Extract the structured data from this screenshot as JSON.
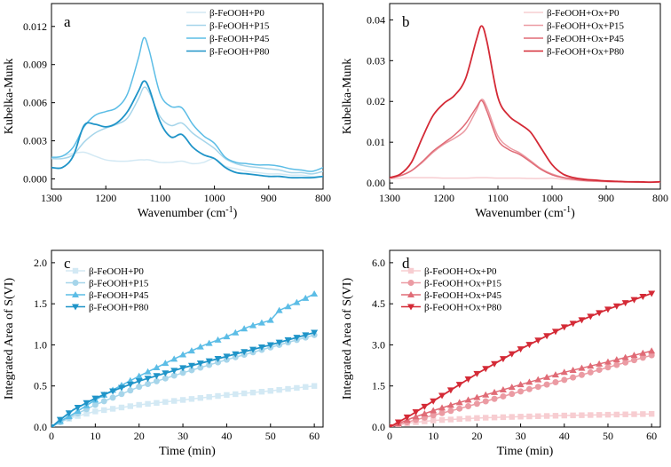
{
  "figure": {
    "panel_count": 4
  },
  "chart_data": [
    {
      "panel": "a",
      "type": "line",
      "xlabel_main": "Wavenumber (cm",
      "xlabel_sup": "-1",
      "xlabel_end": ")",
      "ylabel": "Kubelka-Munk",
      "xlim": [
        1300,
        800
      ],
      "ylim": [
        -0.0008,
        0.0138
      ],
      "xticks": [
        1300,
        1200,
        1100,
        1000,
        900,
        800
      ],
      "xtick_labels": [
        "1300",
        "1200",
        "1100",
        "1000",
        "900",
        "800"
      ],
      "yticks": [
        0,
        0.003,
        0.006,
        0.009,
        0.012
      ],
      "ytick_labels": [
        "0.000",
        "0.003",
        "0.006",
        "0.009",
        "0.012"
      ],
      "legend": [
        "β-FeOOH+P0",
        "β-FeOOH+P15",
        "β-FeOOH+P45",
        "β-FeOOH+P80"
      ],
      "series": [
        {
          "name": "β-FeOOH+P0",
          "color": "#d3e9f4",
          "x": [
            1300,
            1280,
            1260,
            1240,
            1220,
            1200,
            1180,
            1160,
            1140,
            1130,
            1120,
            1100,
            1080,
            1060,
            1040,
            1020,
            1000,
            980,
            960,
            940,
            920,
            900,
            880,
            860,
            840,
            820,
            800
          ],
          "y": [
            0.0016,
            0.0018,
            0.002,
            0.0021,
            0.0018,
            0.0015,
            0.0014,
            0.0014,
            0.0015,
            0.0015,
            0.0015,
            0.0013,
            0.0013,
            0.0014,
            0.0012,
            0.0013,
            0.0016,
            0.001,
            0.0008,
            0.0006,
            0.0005,
            0.0004,
            0.0004,
            0.0003,
            0.0003,
            0.0002,
            0.0002
          ]
        },
        {
          "name": "β-FeOOH+P15",
          "color": "#a6d5ea",
          "x": [
            1300,
            1280,
            1260,
            1240,
            1220,
            1200,
            1180,
            1160,
            1140,
            1130,
            1120,
            1100,
            1080,
            1060,
            1040,
            1020,
            1000,
            980,
            960,
            940,
            920,
            900,
            880,
            860,
            840,
            820,
            800
          ],
          "y": [
            0.0016,
            0.0016,
            0.0019,
            0.0029,
            0.0036,
            0.004,
            0.0043,
            0.0048,
            0.0063,
            0.0072,
            0.0068,
            0.0049,
            0.0042,
            0.0044,
            0.0036,
            0.003,
            0.0024,
            0.0016,
            0.0012,
            0.001,
            0.0009,
            0.0008,
            0.0007,
            0.0005,
            0.0005,
            0.0004,
            0.0006
          ]
        },
        {
          "name": "β-FeOOH+P45",
          "color": "#5cbde6",
          "x": [
            1300,
            1280,
            1260,
            1240,
            1220,
            1200,
            1180,
            1160,
            1140,
            1130,
            1120,
            1100,
            1080,
            1060,
            1040,
            1020,
            1000,
            980,
            960,
            940,
            920,
            900,
            880,
            860,
            840,
            820,
            800
          ],
          "y": [
            0.0017,
            0.0018,
            0.0025,
            0.0041,
            0.005,
            0.0053,
            0.0056,
            0.0067,
            0.0095,
            0.0111,
            0.0101,
            0.0067,
            0.0057,
            0.0056,
            0.0043,
            0.0034,
            0.0028,
            0.0017,
            0.0013,
            0.0012,
            0.0011,
            0.0011,
            0.001,
            0.0008,
            0.0007,
            0.0006,
            0.0009
          ]
        },
        {
          "name": "β-FeOOH+P80",
          "color": "#1f94c8",
          "x": [
            1300,
            1280,
            1260,
            1240,
            1220,
            1200,
            1180,
            1160,
            1140,
            1130,
            1120,
            1100,
            1080,
            1060,
            1040,
            1020,
            1000,
            980,
            960,
            940,
            920,
            900,
            880,
            860,
            840,
            820,
            800
          ],
          "y": [
            0.0009,
            0.0009,
            0.0018,
            0.0042,
            0.0043,
            0.0041,
            0.0044,
            0.0053,
            0.0069,
            0.0077,
            0.0071,
            0.0045,
            0.0033,
            0.0035,
            0.0025,
            0.0019,
            0.0016,
            0.0009,
            0.0005,
            0.0004,
            0.0003,
            0.0002,
            0.0002,
            0.0001,
            0.0001,
            0.0001,
            0.0002
          ]
        }
      ]
    },
    {
      "panel": "b",
      "type": "line",
      "xlabel_main": "Wavenumber (cm",
      "xlabel_sup": "-1",
      "xlabel_end": ")",
      "ylabel": "Kubelka-Munk",
      "xlim": [
        1300,
        800
      ],
      "ylim": [
        -0.0015,
        0.044
      ],
      "xticks": [
        1300,
        1200,
        1100,
        1000,
        900,
        800
      ],
      "xtick_labels": [
        "1300",
        "1200",
        "1100",
        "1000",
        "900",
        "800"
      ],
      "yticks": [
        0,
        0.01,
        0.02,
        0.03,
        0.04
      ],
      "ytick_labels": [
        "0.00",
        "0.01",
        "0.02",
        "0.03",
        "0.04"
      ],
      "legend": [
        "β-FeOOH+Ox+P0",
        "β-FeOOH+Ox+P15",
        "β-FeOOH+Ox+P45",
        "β-FeOOH+Ox+P80"
      ],
      "series": [
        {
          "name": "β-FeOOH+Ox+P0",
          "color": "#f7cdd1",
          "x": [
            1300,
            1280,
            1260,
            1240,
            1220,
            1200,
            1180,
            1160,
            1140,
            1130,
            1120,
            1100,
            1080,
            1060,
            1040,
            1020,
            1000,
            980,
            960,
            940,
            920,
            900,
            880,
            860,
            840,
            820,
            800
          ],
          "y": [
            0.001,
            0.0012,
            0.0013,
            0.0013,
            0.0013,
            0.0012,
            0.0012,
            0.0012,
            0.0013,
            0.0013,
            0.0013,
            0.0012,
            0.0012,
            0.0012,
            0.0011,
            0.0011,
            0.0012,
            0.0009,
            0.0007,
            0.0005,
            0.0004,
            0.0003,
            0.0003,
            0.0002,
            0.0002,
            0.0002,
            0.0002
          ]
        },
        {
          "name": "β-FeOOH+Ox+P15",
          "color": "#eb9ba3",
          "x": [
            1300,
            1280,
            1260,
            1240,
            1220,
            1200,
            1180,
            1160,
            1140,
            1130,
            1120,
            1100,
            1080,
            1060,
            1040,
            1020,
            1000,
            980,
            960,
            940,
            920,
            900,
            880,
            860,
            840,
            820,
            800
          ],
          "y": [
            0.0012,
            0.0018,
            0.003,
            0.005,
            0.0075,
            0.0095,
            0.011,
            0.013,
            0.0178,
            0.0205,
            0.0185,
            0.0115,
            0.0088,
            0.0074,
            0.0055,
            0.0035,
            0.0022,
            0.0014,
            0.001,
            0.0007,
            0.0005,
            0.0004,
            0.0003,
            0.0003,
            0.0002,
            0.0002,
            0.0003
          ]
        },
        {
          "name": "β-FeOOH+Ox+P45",
          "color": "#e06b76",
          "x": [
            1300,
            1280,
            1260,
            1240,
            1220,
            1200,
            1180,
            1160,
            1140,
            1130,
            1120,
            1100,
            1080,
            1060,
            1040,
            1020,
            1000,
            980,
            960,
            940,
            920,
            900,
            880,
            860,
            840,
            820,
            800
          ],
          "y": [
            0.0012,
            0.0018,
            0.003,
            0.0052,
            0.0078,
            0.0098,
            0.0118,
            0.0145,
            0.0185,
            0.0202,
            0.0175,
            0.0105,
            0.0082,
            0.007,
            0.0052,
            0.0033,
            0.002,
            0.0013,
            0.0009,
            0.0006,
            0.0005,
            0.0004,
            0.0003,
            0.0003,
            0.0002,
            0.0002,
            0.0003
          ]
        },
        {
          "name": "β-FeOOH+Ox+P80",
          "color": "#d42a36",
          "x": [
            1300,
            1280,
            1260,
            1240,
            1220,
            1200,
            1180,
            1160,
            1140,
            1130,
            1120,
            1100,
            1080,
            1060,
            1040,
            1020,
            1000,
            980,
            960,
            940,
            920,
            900,
            880,
            860,
            840,
            820,
            800
          ],
          "y": [
            0.0013,
            0.0022,
            0.005,
            0.011,
            0.0165,
            0.0195,
            0.0215,
            0.0255,
            0.035,
            0.0385,
            0.0345,
            0.021,
            0.0165,
            0.0145,
            0.0125,
            0.0085,
            0.0045,
            0.0022,
            0.0013,
            0.0009,
            0.0007,
            0.0005,
            0.0004,
            0.0003,
            0.0003,
            0.0002,
            0.0003
          ]
        }
      ]
    },
    {
      "panel": "c",
      "type": "line",
      "xlabel": "Time (min)",
      "ylabel": "Integrated Area of S(VI)",
      "xlim": [
        0,
        62
      ],
      "ylim": [
        0,
        2.15
      ],
      "xticks": [
        0,
        10,
        20,
        30,
        40,
        50,
        60
      ],
      "xtick_labels": [
        "0",
        "10",
        "20",
        "30",
        "40",
        "50",
        "60"
      ],
      "yticks": [
        0,
        0.5,
        1.0,
        1.5,
        2.0
      ],
      "ytick_labels": [
        "0.0",
        "0.5",
        "1.0",
        "1.5",
        "2.0"
      ],
      "legend": [
        "β-FeOOH+P0",
        "β-FeOOH+P15",
        "β-FeOOH+P45",
        "β-FeOOH+P80"
      ],
      "marker_spacing_min": 2,
      "series": [
        {
          "name": "β-FeOOH+P0",
          "color": "#d3e9f4",
          "marker": "square",
          "x": [
            0,
            2,
            5,
            10,
            15,
            20,
            30,
            40,
            50,
            60
          ],
          "y": [
            0,
            0.06,
            0.12,
            0.19,
            0.23,
            0.27,
            0.33,
            0.39,
            0.44,
            0.5
          ]
        },
        {
          "name": "β-FeOOH+P15",
          "color": "#a6d5ea",
          "marker": "circle",
          "x": [
            0,
            2,
            5,
            10,
            15,
            20,
            30,
            40,
            50,
            60
          ],
          "y": [
            0,
            0.06,
            0.14,
            0.27,
            0.38,
            0.49,
            0.66,
            0.82,
            0.97,
            1.12
          ]
        },
        {
          "name": "β-FeOOH+P45",
          "color": "#5cbde6",
          "marker": "triangle-up",
          "x": [
            0,
            2,
            5,
            10,
            15,
            20,
            25,
            30,
            35,
            40,
            45,
            50,
            52,
            55,
            60
          ],
          "y": [
            0,
            0.07,
            0.16,
            0.33,
            0.48,
            0.62,
            0.75,
            0.88,
            1.0,
            1.1,
            1.22,
            1.3,
            1.42,
            1.49,
            1.62
          ]
        },
        {
          "name": "β-FeOOH+P80",
          "color": "#1f94c8",
          "marker": "triangle-down",
          "x": [
            0,
            2,
            5,
            10,
            15,
            20,
            30,
            40,
            50,
            60
          ],
          "y": [
            0,
            0.09,
            0.21,
            0.35,
            0.46,
            0.56,
            0.72,
            0.86,
            1.0,
            1.15
          ]
        }
      ]
    },
    {
      "panel": "d",
      "type": "line",
      "xlabel": "Time (min)",
      "ylabel": "Integrated Area of S(VI)",
      "xlim": [
        0,
        62
      ],
      "ylim": [
        0,
        6.45
      ],
      "xticks": [
        0,
        10,
        20,
        30,
        40,
        50,
        60
      ],
      "xtick_labels": [
        "0",
        "10",
        "20",
        "30",
        "40",
        "50",
        "60"
      ],
      "yticks": [
        0,
        1.5,
        3.0,
        4.5,
        6.0
      ],
      "ytick_labels": [
        "0.0",
        "1.5",
        "3.0",
        "4.5",
        "6.0"
      ],
      "legend": [
        "β-FeOOH+Ox+P0",
        "β-FeOOH+Ox+P15",
        "β-FeOOH+Ox+P45",
        "β-FeOOH+Ox+P80"
      ],
      "marker_spacing_min": 2,
      "series": [
        {
          "name": "β-FeOOH+Ox+P0",
          "color": "#f7cdd1",
          "marker": "square",
          "x": [
            0,
            2,
            5,
            10,
            20,
            30,
            40,
            50,
            60
          ],
          "y": [
            0,
            0.08,
            0.16,
            0.24,
            0.33,
            0.38,
            0.42,
            0.45,
            0.48
          ]
        },
        {
          "name": "β-FeOOH+Ox+P15",
          "color": "#eb9ba3",
          "marker": "circle",
          "x": [
            0,
            5,
            10,
            15,
            20,
            30,
            40,
            50,
            60
          ],
          "y": [
            0,
            0.22,
            0.43,
            0.63,
            0.85,
            1.3,
            1.72,
            2.18,
            2.62
          ]
        },
        {
          "name": "β-FeOOH+Ox+P45",
          "color": "#e06b76",
          "marker": "triangle-up",
          "x": [
            0,
            5,
            10,
            15,
            20,
            30,
            40,
            50,
            60
          ],
          "y": [
            0,
            0.32,
            0.6,
            0.85,
            1.08,
            1.55,
            2.0,
            2.38,
            2.78
          ]
        },
        {
          "name": "β-FeOOH+Ox+P80",
          "color": "#d42a36",
          "marker": "triangle-down",
          "x": [
            0,
            5,
            10,
            15,
            20,
            30,
            40,
            50,
            60
          ],
          "y": [
            0,
            0.45,
            0.95,
            1.45,
            1.95,
            2.85,
            3.65,
            4.3,
            4.88
          ]
        }
      ]
    }
  ]
}
